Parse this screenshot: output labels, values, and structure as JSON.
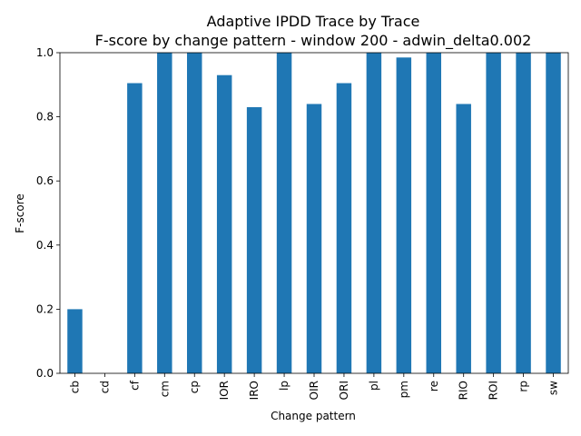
{
  "chart_data": {
    "type": "bar",
    "title": "Adaptive IPDD Trace by Trace",
    "subtitle": "F-score by change pattern - window 200 - adwin_delta0.002",
    "xlabel": "Change pattern",
    "ylabel": "F-score",
    "ylim": [
      0,
      1
    ],
    "yticks": [
      "0.0",
      "0.2",
      "0.4",
      "0.6",
      "0.8",
      "1.0"
    ],
    "categories": [
      "cb",
      "cd",
      "cf",
      "cm",
      "cp",
      "IOR",
      "IRO",
      "lp",
      "OIR",
      "ORI",
      "pl",
      "pm",
      "re",
      "RIO",
      "ROI",
      "rp",
      "sw"
    ],
    "values": [
      0.2,
      0.0,
      0.905,
      1.0,
      1.0,
      0.93,
      0.83,
      1.0,
      0.84,
      0.905,
      1.0,
      0.985,
      1.0,
      0.84,
      1.0,
      1.0,
      1.0
    ],
    "bar_color": "#1f77b4",
    "legend": "none",
    "grid": false
  }
}
